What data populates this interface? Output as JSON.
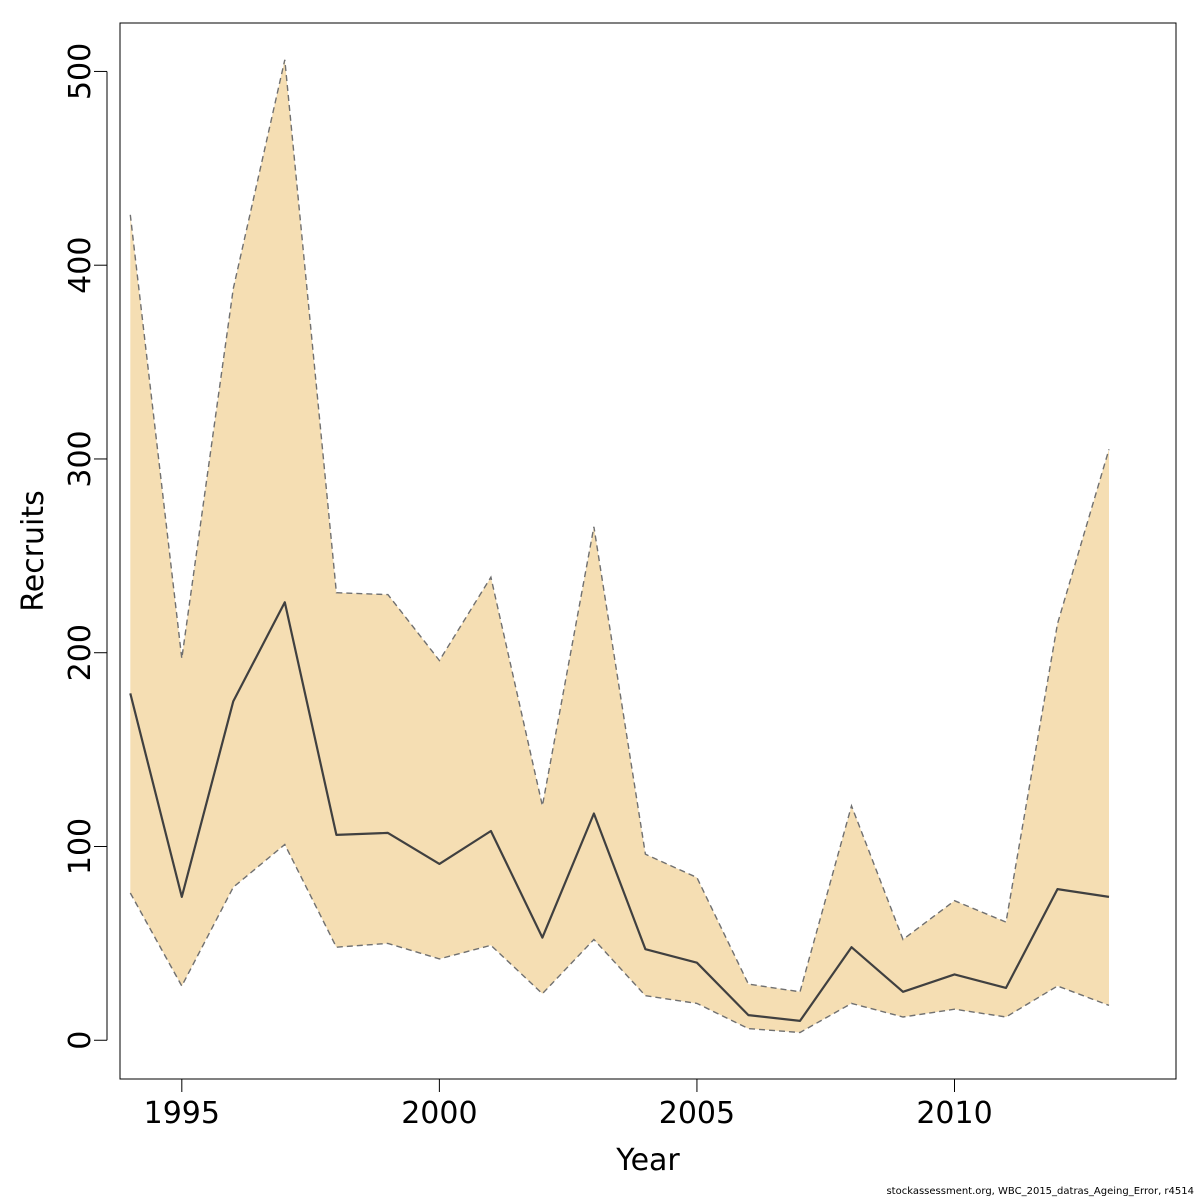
{
  "chart_data": {
    "type": "area",
    "xlabel": "Year",
    "ylabel": "Recruits",
    "xlim": [
      1993.8,
      2014.3
    ],
    "ylim": [
      -20,
      525
    ],
    "xticks": [
      1995,
      2000,
      2005,
      2010
    ],
    "yticks": [
      0,
      100,
      200,
      300,
      400,
      500
    ],
    "grid": false,
    "x": [
      1994,
      1995,
      1996,
      1997,
      1998,
      1999,
      2000,
      2001,
      2002,
      2003,
      2004,
      2005,
      2006,
      2007,
      2008,
      2009,
      2010,
      2011,
      2012,
      2013
    ],
    "series": [
      {
        "role": "estimate",
        "style": "solid",
        "values": [
          179,
          74,
          175,
          226,
          106,
          107,
          91,
          108,
          53,
          117,
          47,
          40,
          13,
          10,
          48,
          25,
          34,
          27,
          78,
          74
        ]
      },
      {
        "role": "upper",
        "style": "dashed",
        "values": [
          426,
          197,
          388,
          506,
          231,
          230,
          196,
          239,
          121,
          265,
          96,
          84,
          29,
          25,
          121,
          52,
          72,
          61,
          215,
          305
        ]
      },
      {
        "role": "lower",
        "style": "dashed",
        "values": [
          76,
          28,
          79,
          101,
          48,
          50,
          42,
          49,
          24,
          52,
          23,
          19,
          6,
          4,
          19,
          12,
          16,
          12,
          28,
          18
        ]
      }
    ],
    "colors": {
      "band": "#f5deb3",
      "line": "#404040",
      "dash": "#707070"
    }
  },
  "footer": "stockassessment.org, WBC_2015_datras_Ageing_Error, r4514"
}
